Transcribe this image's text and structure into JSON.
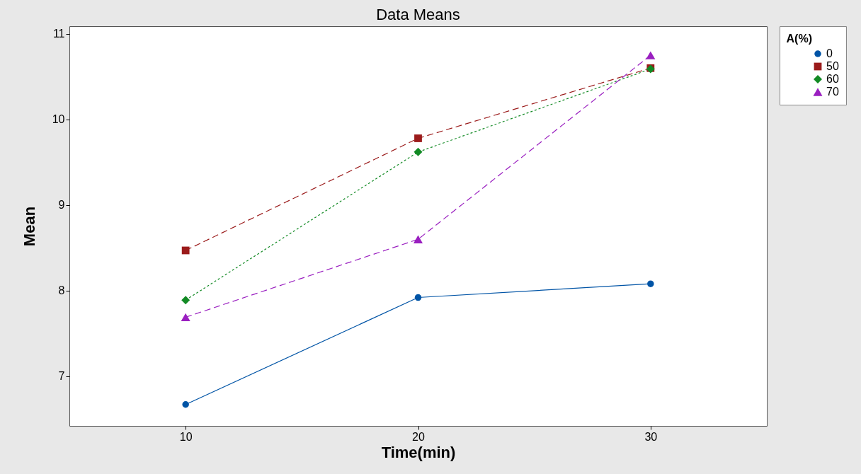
{
  "chart_data": {
    "type": "line",
    "title": "Data Means",
    "xlabel": "Time(min)",
    "ylabel": "Mean",
    "legend_title": "A(%)",
    "x": [
      10,
      20,
      30
    ],
    "xlim": [
      5,
      35
    ],
    "xticks": [
      10,
      20,
      30
    ],
    "ylim": [
      6.42,
      11.09
    ],
    "yticks": [
      7,
      8,
      9,
      10,
      11
    ],
    "grid": false,
    "legend": "right",
    "series": [
      {
        "name": "0",
        "color": "#0054a6",
        "values": [
          6.67,
          7.92,
          8.08
        ],
        "marker": "circle",
        "line_style": "solid"
      },
      {
        "name": "50",
        "color": "#9b1b1b",
        "values": [
          8.47,
          9.78,
          10.6
        ],
        "marker": "square",
        "line_style": "dashed"
      },
      {
        "name": "60",
        "color": "#128a24",
        "values": [
          7.89,
          9.62,
          10.59
        ],
        "marker": "diamond",
        "line_style": "dotted"
      },
      {
        "name": "70",
        "color": "#9a1fc0",
        "values": [
          7.69,
          8.6,
          10.75
        ],
        "marker": "triangle",
        "line_style": "dashed"
      }
    ]
  }
}
